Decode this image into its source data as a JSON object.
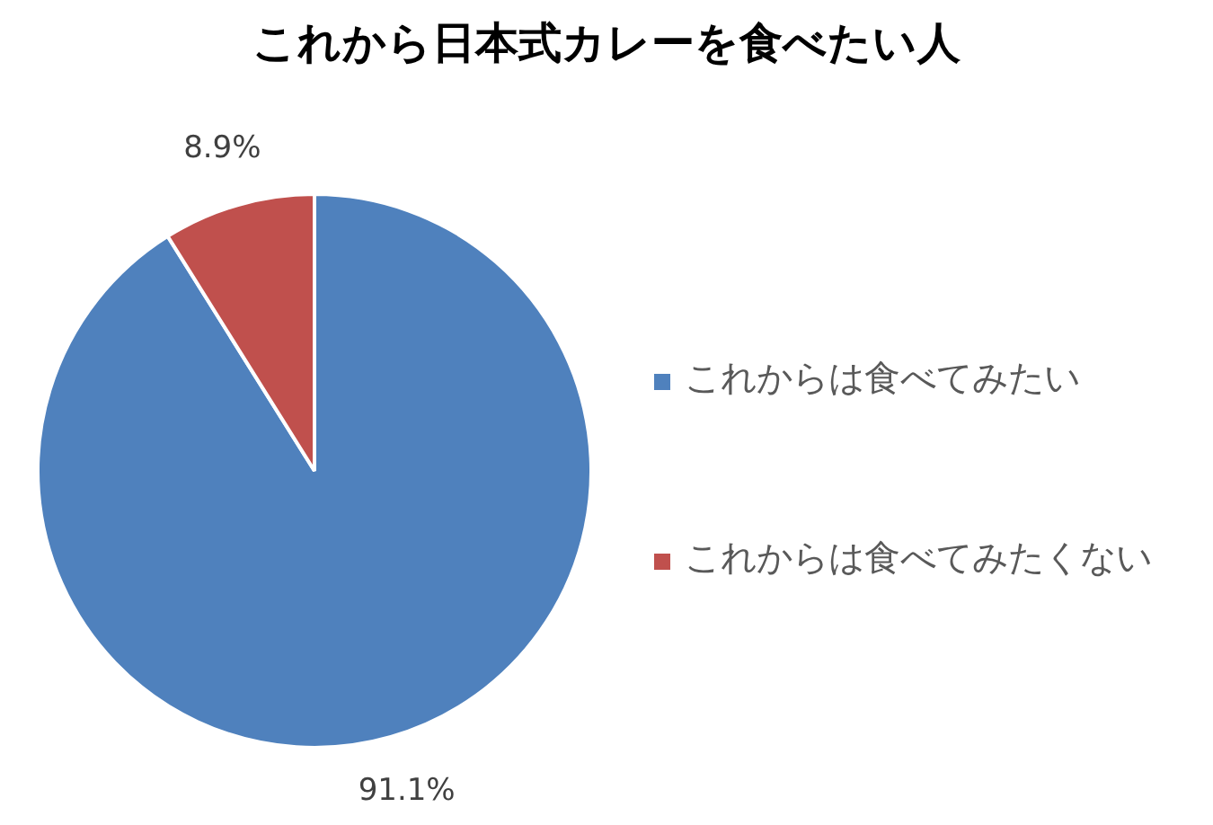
{
  "chart_data": {
    "type": "pie",
    "title": "これから日本式カレーを食べたい人",
    "categories": [
      "これからは食べてみたい",
      "これからは食べてみたくない"
    ],
    "values": [
      91.1,
      8.9
    ],
    "colors": [
      "#4f81bd",
      "#c0504d"
    ],
    "value_labels": [
      "91.1%",
      "8.9%"
    ],
    "legend": "right"
  }
}
